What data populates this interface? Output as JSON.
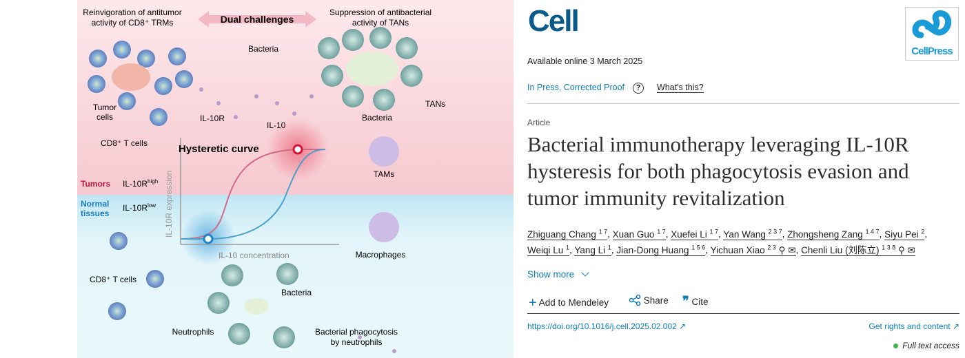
{
  "graphical_abstract": {
    "top_left": "Reinvigoration of antitumor\nactivity of CD8⁺ TRMs",
    "dual": "Dual challenges",
    "top_right": "Suppression of antibacterial\nactivity of TANs",
    "bacteria_top": "Bacteria",
    "tumor_cells": "Tumor\ncells",
    "il10r": "IL-10R",
    "il10": "IL-10",
    "cd8_top": "CD8⁺ T cells",
    "bacteria_right": "Bacteria",
    "tans": "TANs",
    "tams": "TAMs",
    "hysteretic": "Hysteretic curve",
    "tumors": "Tumors",
    "il10r_high": "IL-10R",
    "high": "high",
    "normal": "Normal\ntissues",
    "il10r_low": "IL-10R",
    "low": "low",
    "y_axis": "IL-10R expression",
    "x_axis": "IL-10 concentration",
    "macrophages": "Macrophages",
    "cd8_bottom": "CD8⁺ T cells",
    "bacteria_bottom": "Bacteria",
    "neutrophils": "Neutrophils",
    "phago": "Bacterial phagocytosis\nby neutrophils",
    "colors": {
      "tumor": "#f9dde2",
      "normal": "#dff3f8",
      "red": "#d6133a",
      "blue": "#1a86c8"
    }
  },
  "journal": {
    "logo": "Cell",
    "publisher_logo": "CellPress"
  },
  "available": "Available online 3 March 2025",
  "status": "In Press, Corrected Proof",
  "help_icon": "?",
  "whats_this": "What's this?",
  "article_type": "Article",
  "title_lines": [
    "Bacterial immunotherapy leveraging IL-10R",
    "hysteresis for both phagocytosis evasion and",
    "tumor immunity revitalization"
  ],
  "authors": [
    {
      "name": "Zhiguang Chang",
      "sup": "1 7"
    },
    {
      "name": "Xuan Guo",
      "sup": "1 7"
    },
    {
      "name": "Xuefei Li",
      "sup": "1 7"
    },
    {
      "name": "Yan Wang",
      "sup": "2 3 7"
    },
    {
      "name": "Zhongsheng Zang",
      "sup": "1 4 7"
    },
    {
      "name": "Siyu Pei",
      "sup": "2"
    },
    {
      "name": "Weiqi Lu",
      "sup": "1"
    },
    {
      "name": "Yang Li",
      "sup": "1"
    },
    {
      "name": "Jian-Dong Huang",
      "sup": "1 5 6"
    },
    {
      "name": "Yichuan Xiao",
      "sup": "2 3",
      "contact": true
    },
    {
      "name": "Chenli Liu (刘陈立)",
      "sup": "1 3 8",
      "contact": true
    }
  ],
  "show_more": "Show more",
  "actions": {
    "mendeley": "Add to Mendeley",
    "share": "Share",
    "cite": "Cite"
  },
  "doi": "https://doi.org/10.1016/j.cell.2025.02.002",
  "rights": "Get rights and content",
  "access": "Full text access",
  "colors": {
    "link": "#0c7dbb",
    "cell_logo": "#0b5a8c",
    "access_dot": "#3db54a",
    "cellpress": "#1a9ad6"
  }
}
